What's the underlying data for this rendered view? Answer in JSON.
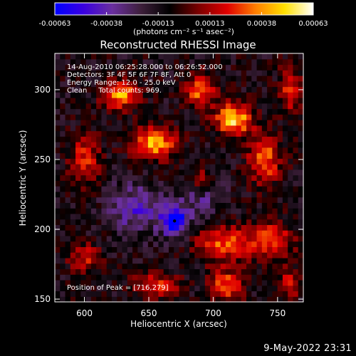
{
  "colors": {
    "background": "#000000",
    "text": "#ffffff",
    "colormap": [
      "#0000ff",
      "#3a00e0",
      "#6a2f9f",
      "#3d1f3a",
      "#000000",
      "#7a0000",
      "#e00000",
      "#ff7f00",
      "#ffe000",
      "#ffffff"
    ]
  },
  "timestamp": "9-May-2022 23:31",
  "colorbar": {
    "min": -0.00063,
    "max": 0.00063,
    "tick_labels": [
      "-0.00063",
      "-0.00038",
      "-0.00013",
      "0.00013",
      "0.00038",
      "0.00063"
    ],
    "unit_label": "(photons cm⁻² s⁻¹ asec⁻²)"
  },
  "chart_data": {
    "type": "heatmap",
    "title": "Reconstructed RHESSI Image",
    "xlabel": "Heliocentric X (arcsec)",
    "ylabel": "Heliocentric Y (arcsec)",
    "xlim": [
      577,
      770
    ],
    "ylim": [
      148,
      326
    ],
    "xticks": [
      600,
      650,
      700,
      750
    ],
    "yticks": [
      150,
      200,
      250,
      300
    ],
    "annotations": [
      "14-Aug-2010 06:25:28.000 to 06:26:52.000",
      "Detectors: 3F 4F 5F 6F 7F 8F, Att 0",
      "Energy Range: 12.0 - 25.0 keV",
      "Clean     Total counts: 969."
    ],
    "peak_label": "Position of Peak = [716,279]",
    "peak": [
      716,
      279
    ],
    "marker": [
      670,
      206
    ],
    "grid": {
      "nx": 48,
      "ny": 45
    },
    "sources": [
      {
        "x": 716,
        "y": 279,
        "amp": 0.0006,
        "sx": 10,
        "sy": 8
      },
      {
        "x": 655,
        "y": 262,
        "amp": 0.00052,
        "sx": 12,
        "sy": 8
      },
      {
        "x": 628,
        "y": 297,
        "amp": 0.0005,
        "sx": 10,
        "sy": 7
      },
      {
        "x": 690,
        "y": 300,
        "amp": 0.00045,
        "sx": 8,
        "sy": 8
      },
      {
        "x": 740,
        "y": 250,
        "amp": 0.00042,
        "sx": 9,
        "sy": 12
      },
      {
        "x": 760,
        "y": 300,
        "amp": 0.00032,
        "sx": 6,
        "sy": 12
      },
      {
        "x": 708,
        "y": 190,
        "amp": 0.0004,
        "sx": 14,
        "sy": 9
      },
      {
        "x": 745,
        "y": 192,
        "amp": 0.00036,
        "sx": 12,
        "sy": 10
      },
      {
        "x": 600,
        "y": 250,
        "amp": 0.00034,
        "sx": 8,
        "sy": 12
      },
      {
        "x": 600,
        "y": 180,
        "amp": 0.0003,
        "sx": 8,
        "sy": 7
      },
      {
        "x": 655,
        "y": 160,
        "amp": 0.00036,
        "sx": 12,
        "sy": 6
      },
      {
        "x": 710,
        "y": 160,
        "amp": 0.00038,
        "sx": 9,
        "sy": 8
      },
      {
        "x": 760,
        "y": 162,
        "amp": 0.0003,
        "sx": 6,
        "sy": 7
      },
      {
        "x": 690,
        "y": 235,
        "amp": 0.00028,
        "sx": 7,
        "sy": 7
      },
      {
        "x": 670,
        "y": 206,
        "amp": -0.00063,
        "sx": 7,
        "sy": 7
      },
      {
        "x": 640,
        "y": 215,
        "amp": -0.00028,
        "sx": 14,
        "sy": 12
      },
      {
        "x": 690,
        "y": 225,
        "amp": -0.00022,
        "sx": 12,
        "sy": 10
      }
    ]
  }
}
